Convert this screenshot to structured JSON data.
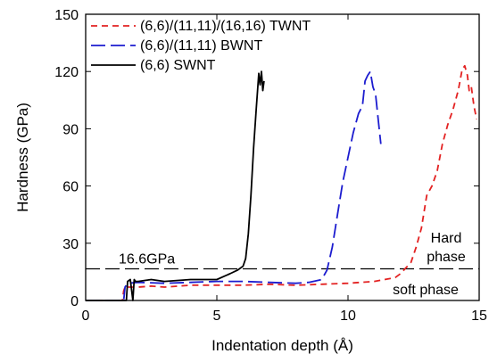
{
  "chart_data": {
    "type": "line",
    "xlabel": "Indentation depth (Å)",
    "ylabel": "Hardness  (GPa)",
    "xlim": [
      0,
      15
    ],
    "ylim": [
      0,
      150
    ],
    "xticks": [
      0,
      5,
      10,
      15
    ],
    "yticks": [
      0,
      30,
      60,
      90,
      120,
      150
    ],
    "grid": false,
    "legend_position": "top-left",
    "series": [
      {
        "name": "(6,6)/(11,11)/(16,16) TWNT",
        "color": "#e32222",
        "dash": "short-dash",
        "x": [
          0,
          1.4,
          1.45,
          1.5,
          1.6,
          2.0,
          2.5,
          3.0,
          4.0,
          5.0,
          6.0,
          7.0,
          8.0,
          9.0,
          10.0,
          11.0,
          11.8,
          12.0,
          12.2,
          12.4,
          12.6,
          12.8,
          13.0,
          13.2,
          13.4,
          13.6,
          13.8,
          14.0,
          14.2,
          14.35,
          14.45,
          14.55,
          14.62,
          14.7,
          14.8,
          14.9
        ],
        "y": [
          0,
          0,
          5,
          7,
          7,
          7,
          7.5,
          7,
          8,
          8,
          8,
          8.5,
          8,
          8.5,
          9,
          10,
          12,
          14,
          17,
          20,
          28,
          38,
          55,
          60,
          68,
          82,
          92,
          100,
          110,
          121,
          123,
          118,
          110,
          112,
          102,
          95
        ]
      },
      {
        "name": "(6,6)/(11,11) BWNT",
        "color": "#1c1ccf",
        "dash": "long-dash",
        "x": [
          0,
          1.45,
          1.5,
          1.6,
          2.0,
          3.0,
          4.0,
          5.0,
          6.0,
          7.0,
          8.0,
          8.5,
          9.0,
          9.2,
          9.4,
          9.6,
          9.8,
          10.0,
          10.2,
          10.4,
          10.55,
          10.65,
          10.75,
          10.85,
          10.95,
          11.05,
          11.15,
          11.25
        ],
        "y": [
          0,
          0,
          7,
          9,
          9.5,
          9,
          9.5,
          10,
          10,
          9.5,
          9,
          9.5,
          11,
          16,
          28,
          45,
          62,
          75,
          88,
          98,
          102,
          115,
          118,
          120,
          112,
          108,
          95,
          82
        ]
      },
      {
        "name": "(6,6) SWNT",
        "color": "#000000",
        "dash": "solid",
        "x": [
          0,
          1.55,
          1.6,
          1.7,
          1.8,
          1.85,
          1.9,
          2.0,
          2.5,
          3.0,
          4.0,
          5.0,
          5.5,
          5.8,
          6.0,
          6.1,
          6.2,
          6.3,
          6.4,
          6.5,
          6.6,
          6.65,
          6.7,
          6.75,
          6.8
        ],
        "y": [
          0,
          0,
          10,
          11,
          0,
          11,
          10,
          10,
          11,
          10,
          11,
          11,
          14,
          16,
          18,
          22,
          35,
          55,
          80,
          100,
          119,
          113,
          120,
          110,
          115
        ]
      }
    ],
    "reference_line": {
      "y": 16.6,
      "label": "16.6GPa",
      "color": "#000000",
      "dash": "long-dash"
    },
    "annotations": {
      "hard_phase_1": "Hard",
      "hard_phase_2": "phase",
      "soft_phase": "soft phase"
    }
  }
}
